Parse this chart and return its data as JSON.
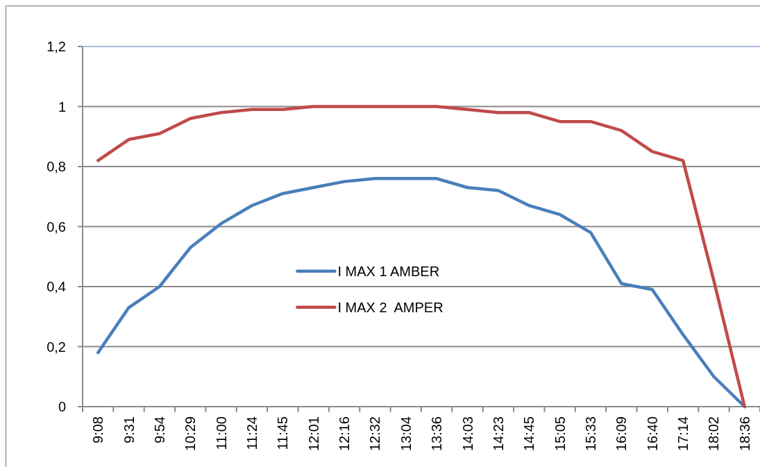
{
  "chart_data": {
    "type": "line",
    "categories": [
      "9:08",
      "9:31",
      "9:54",
      "10:29",
      "11:00",
      "11:24",
      "11:45",
      "12:01",
      "12:16",
      "12:32",
      "13:04",
      "13:36",
      "14:03",
      "14:23",
      "14:45",
      "15:05",
      "15:33",
      "16:09",
      "16:40",
      "17:14",
      "18:02",
      "18:36"
    ],
    "series": [
      {
        "name": "I MAX 1 AMBER",
        "color": "#4a7ebb",
        "values": [
          0.18,
          0.33,
          0.4,
          0.53,
          0.61,
          0.67,
          0.71,
          0.73,
          0.75,
          0.76,
          0.76,
          0.76,
          0.73,
          0.72,
          0.67,
          0.64,
          0.58,
          0.41,
          0.39,
          0.24,
          0.1,
          0
        ]
      },
      {
        "name": "I MAX 2  AMPER",
        "color": "#be4b48",
        "values": [
          0.82,
          0.89,
          0.91,
          0.96,
          0.98,
          0.99,
          0.99,
          1.0,
          1.0,
          1.0,
          1.0,
          1.0,
          0.99,
          0.98,
          0.98,
          0.95,
          0.95,
          0.92,
          0.85,
          0.82,
          0.42,
          0
        ]
      }
    ],
    "ylim": [
      0,
      1.2
    ],
    "yticks": [
      0,
      {
        "value": 0.2,
        "label": "0,2"
      },
      {
        "value": 0.4,
        "label": "0,4"
      },
      {
        "value": 0.6,
        "label": "0,6"
      },
      {
        "value": 0.8,
        "label": "0,8"
      },
      1,
      {
        "value": 1.2,
        "label": "1,2"
      }
    ],
    "grid": "y",
    "legend": "center",
    "marker": "none",
    "line_style": "solid"
  }
}
